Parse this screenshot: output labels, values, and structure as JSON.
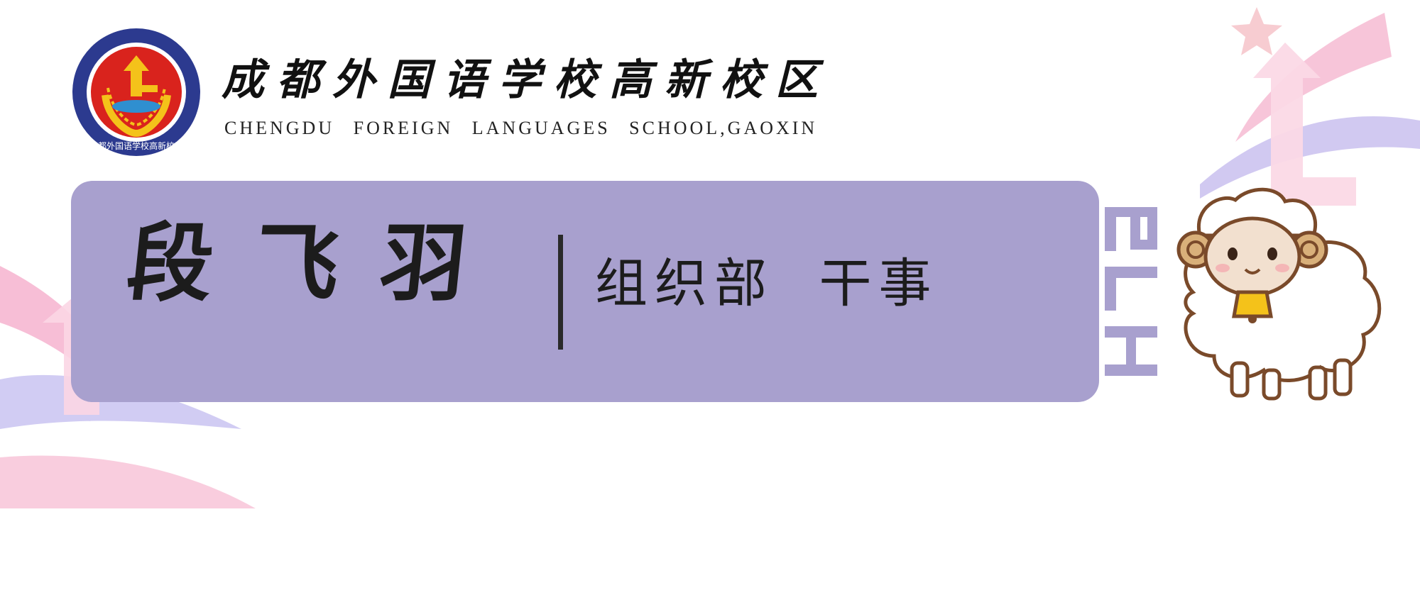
{
  "header": {
    "logo_name": "school-emblem",
    "logo_ring_text": "CHENGDU FOREIGN LANGUAGES SCHOOL,GAOXIN",
    "school_name_cn": "成都外国语学校高新校区",
    "school_name_en": "CHENGDU FOREIGN LANGUAGES SCHOOL,GAOXIN"
  },
  "card": {
    "person_name": "段飞羽",
    "role": "组织部 干事"
  },
  "decor": {
    "badge_text": "5TH",
    "mascot": "sheep-mascot-icon",
    "colors": {
      "card": "#a8a0ce",
      "pink": "#f3a9c8",
      "lavender": "#c9c0ee",
      "logo_blue": "#2c3a8f",
      "logo_red": "#d9231d",
      "logo_gold": "#f4c21a"
    }
  }
}
